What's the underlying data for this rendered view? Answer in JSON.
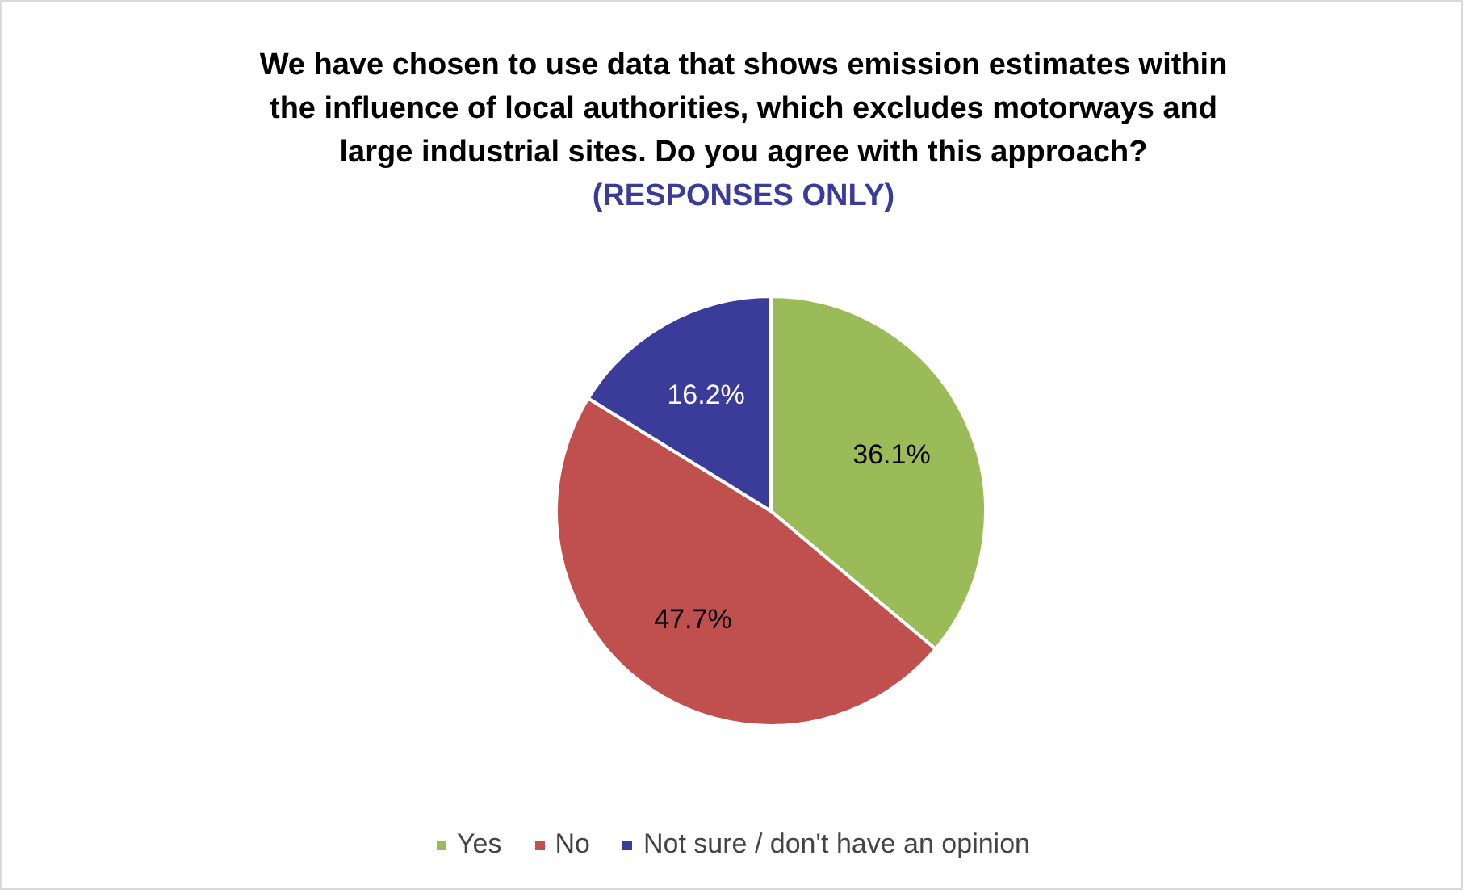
{
  "chart_data": {
    "type": "pie",
    "title": "We have chosen to use data that shows emission estimates within the influence of local authorities, which excludes motorways and large industrial sites. Do you agree with this approach?",
    "subtitle": "(RESPONSES ONLY)",
    "categories": [
      "Yes",
      "No",
      "Not sure / don't have an opinion"
    ],
    "values": [
      36.1,
      47.7,
      16.2
    ],
    "colors": [
      "#9bbb59",
      "#c0504d",
      "#3b3b9a"
    ],
    "value_labels": [
      "36.1%",
      "47.7%",
      "16.2%"
    ],
    "legend": "bottom"
  }
}
